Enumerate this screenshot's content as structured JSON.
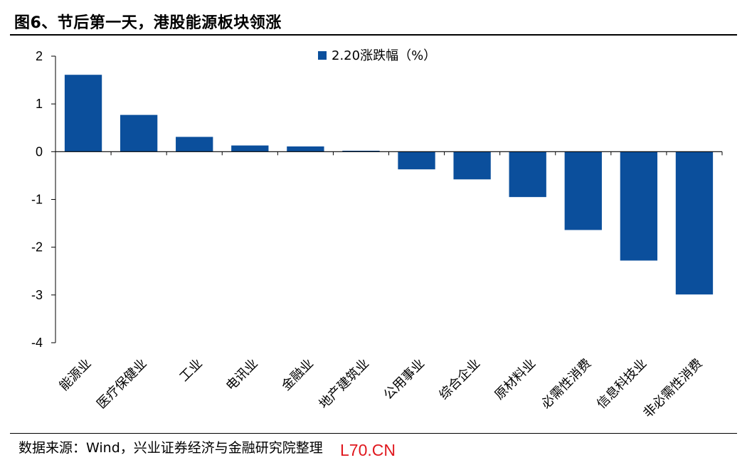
{
  "figure": {
    "title": "图6、节后第一天，港股能源板块领涨",
    "source": "数据来源：Wind，兴业证券经济与金融研究院整理",
    "watermark": "L70.CN"
  },
  "colors": {
    "bar": "#0b4f9c",
    "axis": "#000000"
  },
  "chart_data": {
    "type": "bar",
    "title": "",
    "xlabel": "",
    "ylabel": "",
    "categories": [
      "能源业",
      "医疗保健业",
      "工业",
      "电讯业",
      "金融业",
      "地产建筑业",
      "公用事业",
      "综合企业",
      "原材料业",
      "必需性消费",
      "信息科技业",
      "非必需性消费"
    ],
    "series": [
      {
        "name": "2.20涨跌幅（%）",
        "values": [
          1.61,
          0.77,
          0.31,
          0.13,
          0.11,
          0.02,
          -0.37,
          -0.58,
          -0.95,
          -1.64,
          -2.28,
          -2.99
        ]
      }
    ],
    "ylim": [
      -4,
      2
    ],
    "yticks": [
      "2",
      "1",
      "0",
      "-1",
      "-2",
      "-3",
      "-4"
    ],
    "grid": false,
    "legend": "top-center"
  }
}
